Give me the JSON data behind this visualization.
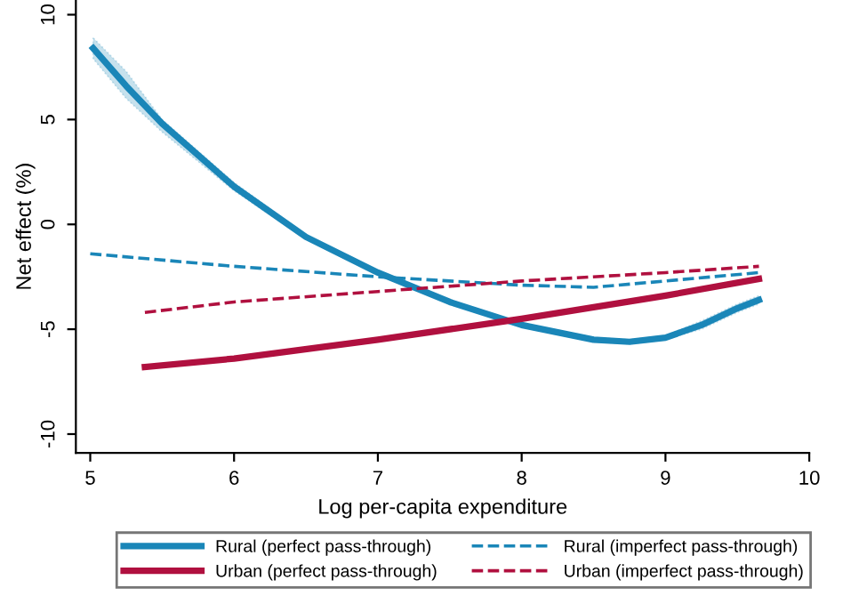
{
  "chart_data": {
    "type": "line",
    "xlabel": "Log per-capita expenditure",
    "ylabel": "Net effect (%)",
    "xlim": [
      4.9,
      10
    ],
    "xticks": [
      5,
      6,
      7,
      8,
      9,
      10
    ],
    "ylim": [
      -10.9,
      10.7
    ],
    "yticks": [
      -10,
      -5,
      0,
      5,
      10
    ],
    "grid": false,
    "legend": "bottom",
    "series": [
      {
        "name": "Rural (perfect pass-through)",
        "color": "#1a86b8",
        "line_style": "solid",
        "x": [
          5.02,
          5.25,
          5.5,
          6.0,
          6.5,
          7.0,
          7.5,
          8.0,
          8.5,
          8.75,
          9.0,
          9.25,
          9.5,
          9.65
        ],
        "values": [
          8.4,
          6.6,
          4.8,
          1.8,
          -0.6,
          -2.3,
          -3.7,
          -4.8,
          -5.5,
          -5.6,
          -5.4,
          -4.8,
          -4.0,
          -3.6
        ],
        "lower": [
          7.9,
          6.0,
          4.4,
          1.6,
          -0.7,
          -2.4,
          -3.8,
          -4.9,
          -5.6,
          -5.7,
          -5.5,
          -5.0,
          -4.2,
          -3.8
        ],
        "upper": [
          8.9,
          7.3,
          5.0,
          2.0,
          -0.5,
          -2.2,
          -3.6,
          -4.7,
          -5.4,
          -5.5,
          -5.3,
          -4.6,
          -3.8,
          -3.4
        ]
      },
      {
        "name": "Rural (imperfect pass-through)",
        "color": "#1a86b8",
        "line_style": "dashed",
        "x": [
          5.0,
          6.0,
          7.0,
          8.0,
          8.5,
          9.0,
          9.65
        ],
        "values": [
          -1.4,
          -2.0,
          -2.5,
          -2.9,
          -3.0,
          -2.7,
          -2.3
        ]
      },
      {
        "name": "Urban (perfect pass-through)",
        "color": "#b0103f",
        "line_style": "solid",
        "x": [
          5.38,
          6.0,
          7.0,
          8.0,
          9.0,
          9.65
        ],
        "values": [
          -6.8,
          -6.4,
          -5.5,
          -4.5,
          -3.4,
          -2.6
        ]
      },
      {
        "name": "Urban (imperfect pass-through)",
        "color": "#b0103f",
        "line_style": "dashed",
        "x": [
          5.38,
          6.0,
          7.0,
          8.0,
          9.0,
          9.65
        ],
        "values": [
          -4.2,
          -3.7,
          -3.2,
          -2.7,
          -2.3,
          -2.0
        ]
      }
    ]
  }
}
